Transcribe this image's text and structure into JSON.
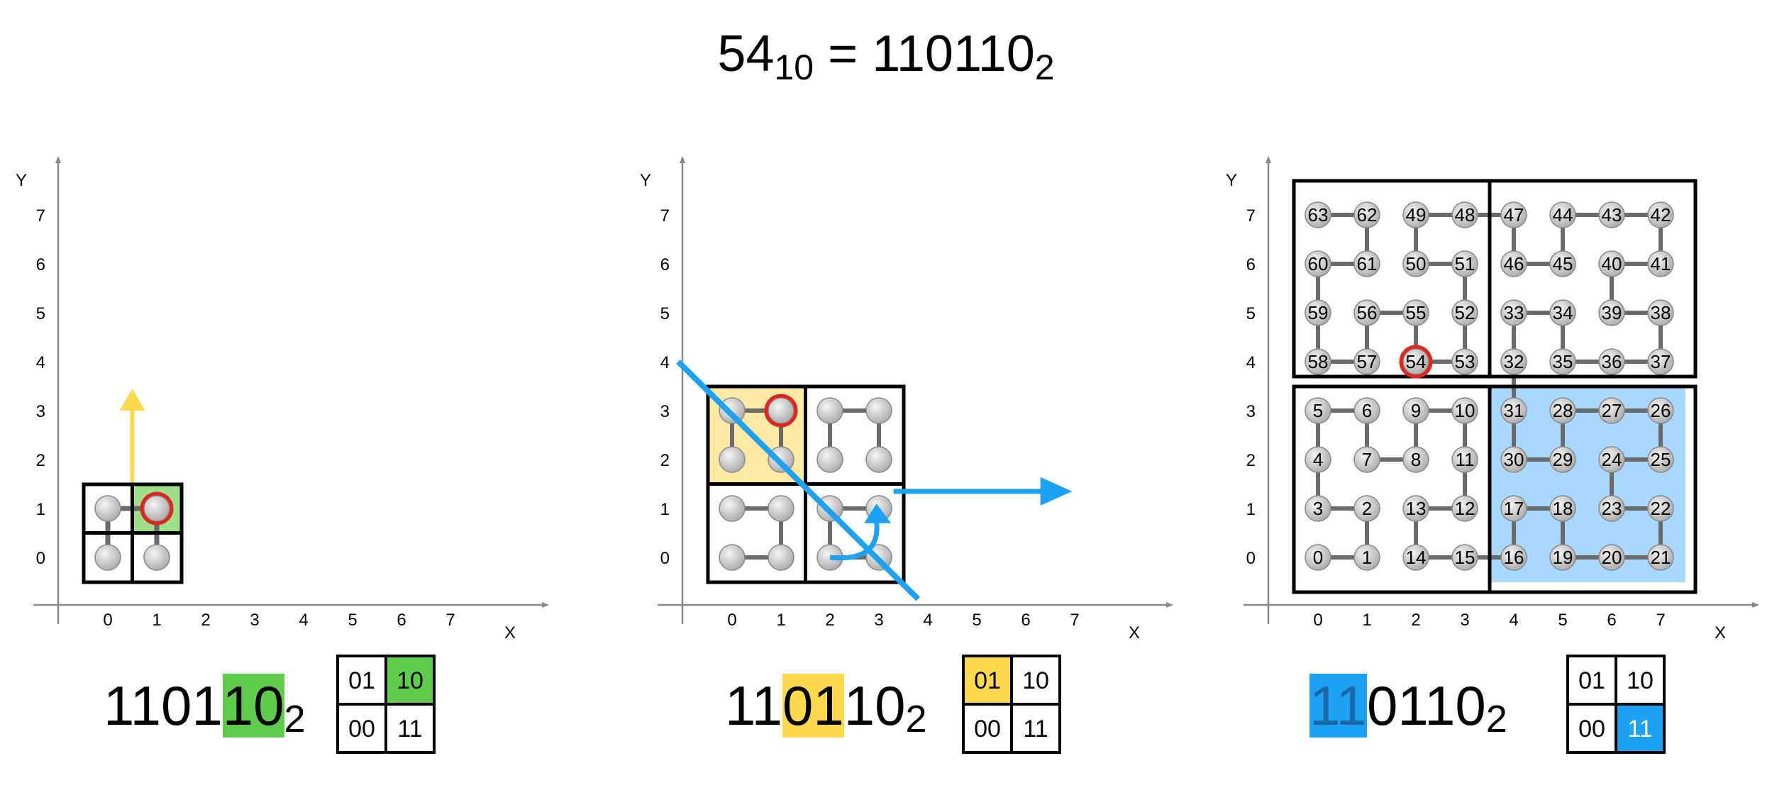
{
  "header": {
    "base": "54",
    "base_sub": "10",
    "eq": " = ",
    "bin": "110110",
    "bin_sub": "2"
  },
  "axis": {
    "x_label": "X",
    "y_label": "Y",
    "ticks": [
      "0",
      "1",
      "2",
      "3",
      "4",
      "5",
      "6",
      "7"
    ]
  },
  "colors": {
    "green": "#5fcd4b",
    "yellow": "#ffd84d",
    "blue": "#1da1f2",
    "lightblue": "#a8d8ff",
    "lightyellow": "#fde9a3",
    "lightgreen": "#9ee08a",
    "red": "#e0241e",
    "node": "#cfcfcf",
    "edge": "#6a6a6a"
  },
  "panels": [
    {
      "caption": {
        "pre": "1101",
        "hl": "10",
        "post": "",
        "sub": "2",
        "hl_color": "#5fcd4b",
        "hl_text_color": "#000000"
      },
      "quadrant_key": {
        "tl": "01",
        "tr": "10",
        "bl": "00",
        "br": "11",
        "active": "tr",
        "active_color": "#5fcd4b",
        "active_text_color": "#000000"
      }
    },
    {
      "caption": {
        "pre": "11",
        "hl": "01",
        "post": "10",
        "sub": "2",
        "hl_color": "#ffd84d",
        "hl_text_color": "#000000"
      },
      "quadrant_key": {
        "tl": "01",
        "tr": "10",
        "bl": "00",
        "br": "11",
        "active": "tl",
        "active_color": "#ffd84d",
        "active_text_color": "#000000"
      }
    },
    {
      "caption": {
        "pre": "",
        "hl": "11",
        "post": "0110",
        "sub": "2",
        "hl_color": "#1da1f2",
        "hl_text_color": "#1a66a8"
      },
      "quadrant_key": {
        "tl": "01",
        "tr": "10",
        "bl": "00",
        "br": "11",
        "active": "br",
        "active_color": "#1da1f2",
        "active_text_color": "#ffffff"
      }
    }
  ],
  "hilbert_order": [
    [
      0,
      0
    ],
    [
      1,
      0
    ],
    [
      1,
      1
    ],
    [
      0,
      1
    ],
    [
      0,
      2
    ],
    [
      0,
      3
    ],
    [
      1,
      3
    ],
    [
      1,
      2
    ],
    [
      2,
      2
    ],
    [
      2,
      3
    ],
    [
      3,
      3
    ],
    [
      3,
      2
    ],
    [
      3,
      1
    ],
    [
      2,
      1
    ],
    [
      2,
      0
    ],
    [
      3,
      0
    ],
    [
      4,
      0
    ],
    [
      4,
      1
    ],
    [
      5,
      1
    ],
    [
      5,
      0
    ],
    [
      6,
      0
    ],
    [
      7,
      0
    ],
    [
      7,
      1
    ],
    [
      6,
      1
    ],
    [
      6,
      2
    ],
    [
      7,
      2
    ],
    [
      7,
      3
    ],
    [
      6,
      3
    ],
    [
      5,
      3
    ],
    [
      5,
      2
    ],
    [
      4,
      2
    ],
    [
      4,
      3
    ],
    [
      4,
      4
    ],
    [
      4,
      5
    ],
    [
      5,
      5
    ],
    [
      5,
      4
    ],
    [
      6,
      4
    ],
    [
      7,
      4
    ],
    [
      7,
      5
    ],
    [
      6,
      5
    ],
    [
      6,
      6
    ],
    [
      7,
      6
    ],
    [
      7,
      7
    ],
    [
      6,
      7
    ],
    [
      5,
      7
    ],
    [
      5,
      6
    ],
    [
      4,
      6
    ],
    [
      4,
      7
    ],
    [
      3,
      7
    ],
    [
      2,
      7
    ],
    [
      2,
      6
    ],
    [
      3,
      6
    ],
    [
      3,
      5
    ],
    [
      3,
      4
    ],
    [
      2,
      4
    ],
    [
      2,
      5
    ],
    [
      1,
      5
    ],
    [
      1,
      4
    ],
    [
      0,
      4
    ],
    [
      0,
      5
    ],
    [
      0,
      6
    ],
    [
      1,
      6
    ],
    [
      1,
      7
    ],
    [
      0,
      7
    ]
  ],
  "target_index": 54
}
